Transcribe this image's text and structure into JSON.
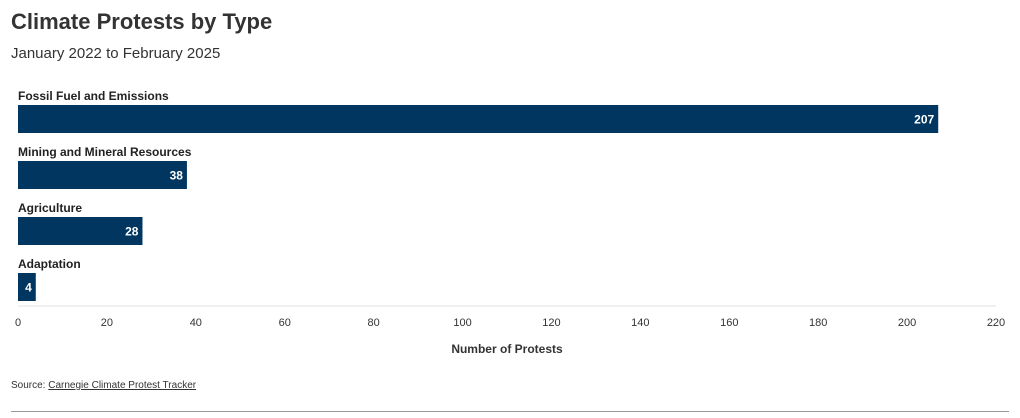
{
  "chart_data": {
    "type": "bar",
    "orientation": "horizontal",
    "title": "Climate Protests by Type",
    "subtitle": "January 2022 to February 2025",
    "categories": [
      "Fossil Fuel and Emissions",
      "Mining and Mineral Resources",
      "Agriculture",
      "Adaptation"
    ],
    "values": [
      207,
      38,
      28,
      4
    ],
    "xlabel": "Number of Protests",
    "ylabel": "",
    "xlim": [
      0,
      220
    ],
    "xticks": [
      0,
      20,
      40,
      60,
      80,
      100,
      120,
      140,
      160,
      180,
      200,
      220
    ],
    "grid": false,
    "legend": "none",
    "bar_color": "#00365f",
    "label_color": "#ffffff"
  },
  "source": {
    "prefix": "Source:",
    "link_text": "Carnegie Climate Protest Tracker"
  }
}
